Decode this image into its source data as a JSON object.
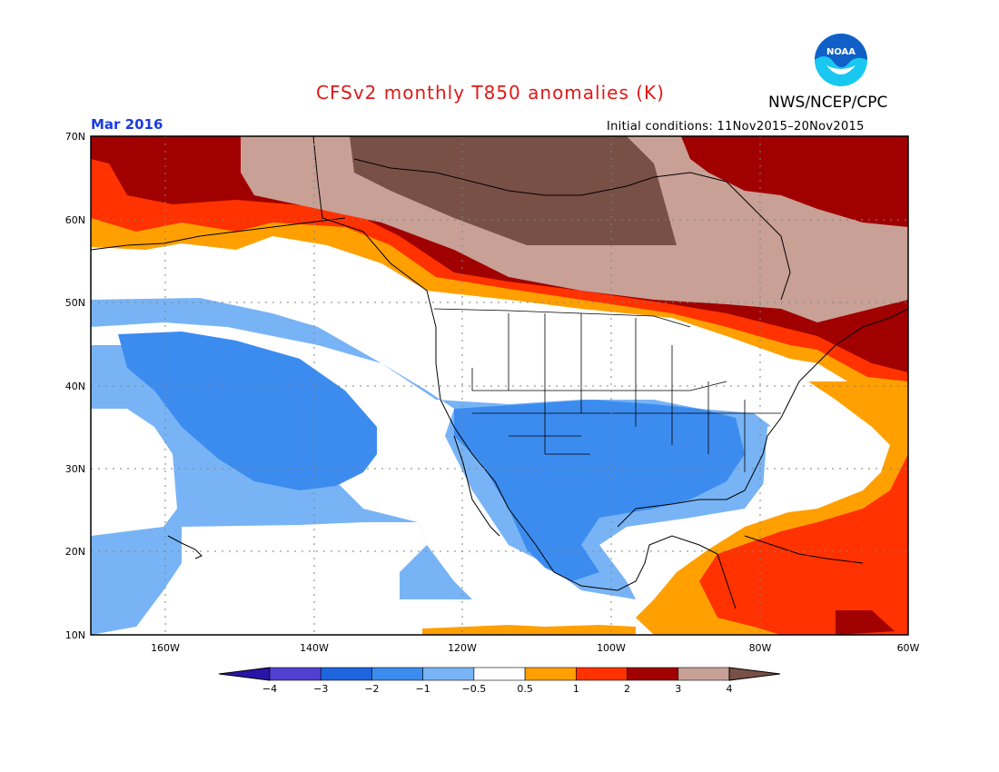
{
  "header": {
    "title": "CFSv2 monthly T850 anomalies (K)",
    "org": "NWS/NCEP/CPC",
    "month": "Mar 2016",
    "initial_conditions": "Initial conditions: 11Nov2015–20Nov2015",
    "logo_text": "NOAA"
  },
  "map": {
    "lat_labels": [
      "70N",
      "60N",
      "50N",
      "40N",
      "30N",
      "20N",
      "10N"
    ],
    "lon_labels": [
      "160W",
      "140W",
      "120W",
      "100W",
      "80W",
      "60W"
    ],
    "lat_range": [
      10,
      70
    ],
    "lon_range": [
      -170,
      -60
    ]
  },
  "colorbar": {
    "tick_labels": [
      "−4",
      "−3",
      "−2",
      "−1",
      "−0.5",
      "0.5",
      "1",
      "2",
      "3",
      "4"
    ],
    "colors": [
      "#2a14a8",
      "#5040d0",
      "#1e64dc",
      "#3c8cf0",
      "#78b4f5",
      "#ffffff",
      "#ffa000",
      "#ff3200",
      "#a00000",
      "#c8a096",
      "#785046"
    ]
  },
  "colors": {
    "title": "#e01818",
    "month": "#1a3ce0",
    "noaa_blue": "#1060c8",
    "noaa_cyan": "#19c8f0"
  }
}
